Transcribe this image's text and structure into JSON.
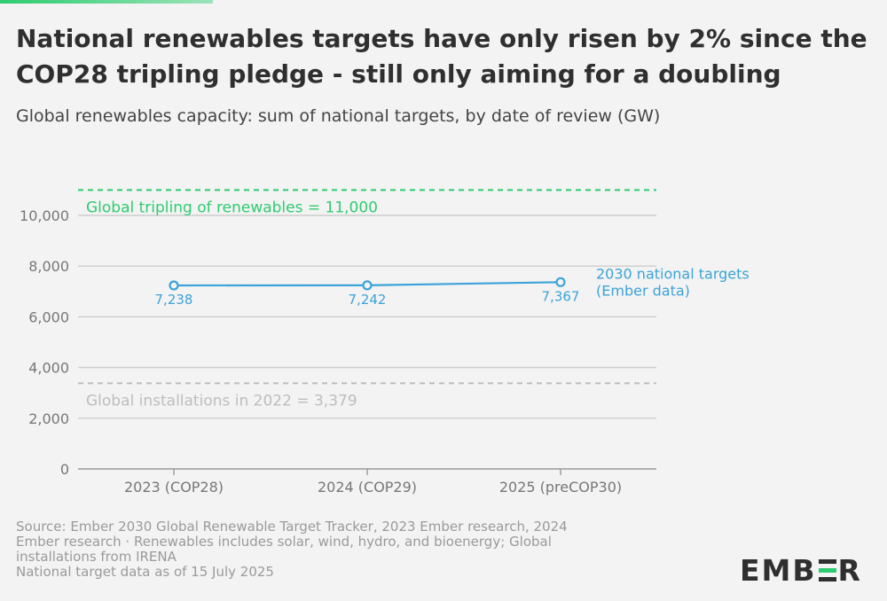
{
  "colors": {
    "accent": "#2ecc71",
    "series": "#3ba3d8",
    "grid": "#cccccc",
    "tripling": "#2ecc71",
    "installations": "#bdbdbd"
  },
  "header": {
    "title_line1": "National renewables targets have only risen by 2% since the",
    "title_line2": "COP28 tripling pledge - still only aiming for a doubling",
    "subtitle": "Global renewables capacity: sum of national targets, by date of review (GW)"
  },
  "footer": {
    "line1": "Source: Ember 2030 Global Renewable Target Tracker, 2023 Ember research, 2024",
    "line2": "Ember research · Renewables includes solar, wind, hydro, and bioenergy; Global",
    "line3": "installations from IRENA",
    "line4": "National target data as of 15 July 2025"
  },
  "logo": {
    "left_text": "EMB",
    "right_text": "R",
    "icon": "ember-logo-e-icon"
  },
  "chart_data": {
    "type": "line",
    "title": "National renewables targets have only risen by 2% since the COP28 tripling pledge - still only aiming for a doubling",
    "subtitle": "Global renewables capacity: sum of national targets, by date of review (GW)",
    "categories": [
      "2023 (COP28)",
      "2024 (COP29)",
      "2025 (preCOP30)"
    ],
    "series": [
      {
        "name": "2030 national targets (Ember data)",
        "label_line1": "2030 national targets",
        "label_line2": "(Ember data)",
        "values": [
          7238,
          7242,
          7367
        ],
        "value_labels": [
          "7,238",
          "7,242",
          "7,367"
        ]
      }
    ],
    "reference_lines": [
      {
        "name": "tripling",
        "value": 11000,
        "label": "Global tripling of renewables = 11,000"
      },
      {
        "name": "installations",
        "value": 3379,
        "label": "Global installations in 2022 = 3,379"
      }
    ],
    "yticks": [
      0,
      2000,
      4000,
      6000,
      8000,
      10000
    ],
    "ytick_labels": [
      "0",
      "2,000",
      "4,000",
      "6,000",
      "8,000",
      "10,000"
    ],
    "ylim": [
      0,
      11000
    ],
    "xlabel": "",
    "ylabel": "",
    "grid": true
  }
}
